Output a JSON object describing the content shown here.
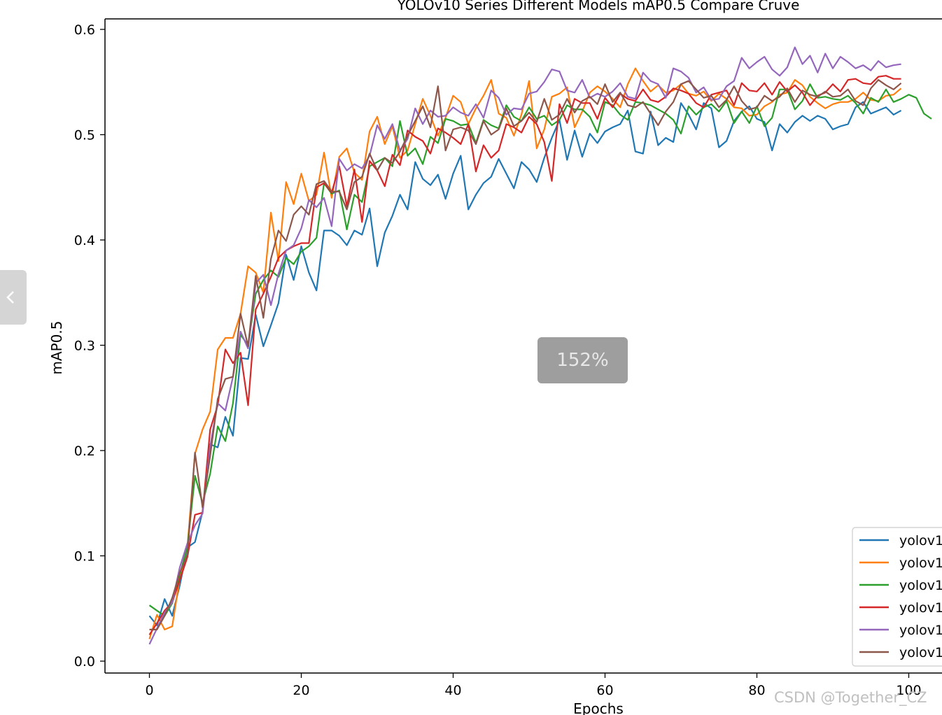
{
  "viewer": {
    "zoom_label": "152%",
    "watermark": "CSDN @Together_CZ",
    "prev_icon": "chevron-left-icon"
  },
  "chart_data": {
    "type": "line",
    "title": "YOLOv10 Series Different Models mAP0.5 Compare Cruve",
    "xlabel": "Epochs",
    "ylabel": "mAP0.5",
    "xlim": [
      -6,
      104
    ],
    "ylim": [
      -0.012,
      0.61
    ],
    "xticks": [
      0,
      20,
      40,
      60,
      80,
      100
    ],
    "yticks": [
      0.0,
      0.1,
      0.2,
      0.3,
      0.4,
      0.5,
      0.6
    ],
    "xtick_labels": [
      "0",
      "20",
      "40",
      "60",
      "80",
      "100"
    ],
    "ytick_labels": [
      "0.0",
      "0.1",
      "0.2",
      "0.3",
      "0.4",
      "0.5",
      "0.6"
    ],
    "grid": false,
    "legend_position": "bottom-right",
    "series": [
      {
        "name": "yolov1",
        "color": "#1f77b4",
        "values": [
          0.043,
          0.034,
          0.059,
          0.043,
          0.072,
          0.108,
          0.113,
          0.142,
          0.206,
          0.203,
          0.232,
          0.214,
          0.288,
          0.287,
          0.329,
          0.299,
          0.319,
          0.34,
          0.386,
          0.362,
          0.394,
          0.369,
          0.352,
          0.409,
          0.409,
          0.404,
          0.395,
          0.409,
          0.405,
          0.43,
          0.375,
          0.407,
          0.423,
          0.443,
          0.429,
          0.474,
          0.458,
          0.452,
          0.462,
          0.439,
          0.463,
          0.48,
          0.429,
          0.443,
          0.454,
          0.46,
          0.477,
          0.463,
          0.449,
          0.474,
          0.467,
          0.455,
          0.478,
          0.497,
          0.514,
          0.476,
          0.504,
          0.479,
          0.501,
          0.492,
          0.503,
          0.507,
          0.51,
          0.523,
          0.484,
          0.482,
          0.522,
          0.49,
          0.497,
          0.493,
          0.53,
          0.519,
          0.505,
          0.53,
          0.525,
          0.488,
          0.494,
          0.513,
          0.522,
          0.527,
          0.515,
          0.512,
          0.485,
          0.51,
          0.502,
          0.512,
          0.518,
          0.513,
          0.518,
          0.515,
          0.505,
          0.508,
          0.51,
          0.526,
          0.531,
          0.52,
          0.523,
          0.526,
          0.519,
          0.523
        ]
      },
      {
        "name": "yolov1",
        "color": "#ff7f0e",
        "values": [
          0.021,
          0.044,
          0.03,
          0.033,
          0.079,
          0.109,
          0.197,
          0.22,
          0.237,
          0.296,
          0.307,
          0.307,
          0.33,
          0.375,
          0.369,
          0.35,
          0.426,
          0.38,
          0.455,
          0.434,
          0.463,
          0.437,
          0.443,
          0.483,
          0.44,
          0.479,
          0.487,
          0.464,
          0.457,
          0.503,
          0.517,
          0.491,
          0.508,
          0.478,
          0.485,
          0.51,
          0.534,
          0.518,
          0.499,
          0.516,
          0.537,
          0.531,
          0.51,
          0.525,
          0.537,
          0.552,
          0.52,
          0.516,
          0.499,
          0.519,
          0.551,
          0.487,
          0.505,
          0.536,
          0.539,
          0.545,
          0.507,
          0.522,
          0.54,
          0.546,
          0.541,
          0.534,
          0.526,
          0.548,
          0.563,
          0.551,
          0.541,
          0.547,
          0.54,
          0.542,
          0.548,
          0.539,
          0.537,
          0.541,
          0.532,
          0.539,
          0.534,
          0.526,
          0.525,
          0.518,
          0.519,
          0.527,
          0.531,
          0.538,
          0.54,
          0.552,
          0.547,
          0.536,
          0.53,
          0.525,
          0.529,
          0.531,
          0.531,
          0.534,
          0.54,
          0.533,
          0.532,
          0.537,
          0.538,
          0.544
        ]
      },
      {
        "name": "yolov1",
        "color": "#2ca02c",
        "values": [
          0.053,
          0.048,
          0.043,
          0.055,
          0.082,
          0.109,
          0.176,
          0.15,
          0.178,
          0.223,
          0.209,
          0.245,
          0.31,
          0.3,
          0.349,
          0.362,
          0.371,
          0.365,
          0.383,
          0.377,
          0.389,
          0.394,
          0.402,
          0.454,
          0.444,
          0.447,
          0.41,
          0.443,
          0.436,
          0.47,
          0.474,
          0.478,
          0.47,
          0.513,
          0.48,
          0.487,
          0.472,
          0.498,
          0.492,
          0.515,
          0.513,
          0.509,
          0.51,
          0.492,
          0.514,
          0.509,
          0.506,
          0.528,
          0.517,
          0.513,
          0.526,
          0.515,
          0.518,
          0.509,
          0.514,
          0.528,
          0.524,
          0.524,
          0.517,
          0.502,
          0.531,
          0.528,
          0.519,
          0.514,
          0.531,
          0.53,
          0.528,
          0.524,
          0.52,
          0.514,
          0.501,
          0.527,
          0.519,
          0.526,
          0.529,
          0.522,
          0.532,
          0.511,
          0.522,
          0.511,
          0.527,
          0.508,
          0.516,
          0.543,
          0.543,
          0.524,
          0.532,
          0.548,
          0.535,
          0.536,
          0.534,
          0.533,
          0.537,
          0.53,
          0.52,
          0.535,
          0.531,
          0.543,
          0.531,
          0.534,
          0.538,
          0.535,
          0.52,
          0.515
        ]
      },
      {
        "name": "yolov1",
        "color": "#d62728",
        "values": [
          0.025,
          0.036,
          0.048,
          0.056,
          0.077,
          0.099,
          0.139,
          0.141,
          0.22,
          0.243,
          0.296,
          0.283,
          0.293,
          0.243,
          0.334,
          0.349,
          0.365,
          0.383,
          0.39,
          0.394,
          0.397,
          0.397,
          0.45,
          0.454,
          0.445,
          0.47,
          0.432,
          0.467,
          0.417,
          0.475,
          0.466,
          0.451,
          0.481,
          0.471,
          0.504,
          0.498,
          0.494,
          0.482,
          0.506,
          0.502,
          0.497,
          0.491,
          0.51,
          0.465,
          0.49,
          0.478,
          0.485,
          0.51,
          0.507,
          0.502,
          0.517,
          0.51,
          0.493,
          0.456,
          0.529,
          0.511,
          0.534,
          0.53,
          0.53,
          0.515,
          0.535,
          0.526,
          0.539,
          0.534,
          0.532,
          0.543,
          0.533,
          0.531,
          0.536,
          0.544,
          0.542,
          0.539,
          0.53,
          0.526,
          0.538,
          0.54,
          0.542,
          0.528,
          0.549,
          0.542,
          0.541,
          0.549,
          0.538,
          0.55,
          0.541,
          0.547,
          0.54,
          0.528,
          0.537,
          0.54,
          0.548,
          0.541,
          0.552,
          0.553,
          0.549,
          0.548,
          0.555,
          0.556,
          0.553,
          0.553
        ]
      },
      {
        "name": "yolov1",
        "color": "#9467bd",
        "values": [
          0.016,
          0.031,
          0.046,
          0.056,
          0.089,
          0.112,
          0.129,
          0.14,
          0.204,
          0.245,
          0.238,
          0.27,
          0.313,
          0.297,
          0.359,
          0.367,
          0.338,
          0.368,
          0.39,
          0.395,
          0.411,
          0.438,
          0.431,
          0.44,
          0.413,
          0.477,
          0.466,
          0.472,
          0.468,
          0.48,
          0.509,
          0.496,
          0.51,
          0.485,
          0.496,
          0.525,
          0.51,
          0.523,
          0.517,
          0.518,
          0.526,
          0.521,
          0.518,
          0.529,
          0.516,
          0.542,
          0.535,
          0.519,
          0.525,
          0.524,
          0.539,
          0.541,
          0.55,
          0.562,
          0.56,
          0.542,
          0.54,
          0.552,
          0.535,
          0.539,
          0.536,
          0.541,
          0.549,
          0.536,
          0.534,
          0.559,
          0.551,
          0.548,
          0.535,
          0.563,
          0.56,
          0.554,
          0.54,
          0.545,
          0.533,
          0.534,
          0.546,
          0.551,
          0.573,
          0.563,
          0.569,
          0.574,
          0.562,
          0.556,
          0.564,
          0.583,
          0.567,
          0.575,
          0.559,
          0.577,
          0.563,
          0.574,
          0.569,
          0.563,
          0.566,
          0.561,
          0.57,
          0.564,
          0.566,
          0.567
        ]
      },
      {
        "name": "yolov1",
        "color": "#8c564b",
        "values": [
          0.03,
          0.03,
          0.043,
          0.06,
          0.084,
          0.101,
          0.198,
          0.146,
          0.195,
          0.249,
          0.268,
          0.27,
          0.33,
          0.299,
          0.366,
          0.326,
          0.382,
          0.409,
          0.399,
          0.424,
          0.432,
          0.424,
          0.453,
          0.456,
          0.446,
          0.446,
          0.429,
          0.455,
          0.46,
          0.482,
          0.466,
          0.478,
          0.473,
          0.484,
          0.499,
          0.513,
          0.527,
          0.507,
          0.546,
          0.485,
          0.505,
          0.507,
          0.504,
          0.491,
          0.513,
          0.5,
          0.505,
          0.525,
          0.508,
          0.513,
          0.521,
          0.512,
          0.534,
          0.514,
          0.519,
          0.534,
          0.521,
          0.532,
          0.536,
          0.529,
          0.548,
          0.531,
          0.54,
          0.528,
          0.526,
          0.531,
          0.52,
          0.509,
          0.522,
          0.531,
          0.548,
          0.551,
          0.543,
          0.535,
          0.537,
          0.526,
          0.533,
          0.546,
          0.532,
          0.524,
          0.526,
          0.537,
          0.532,
          0.536,
          0.544,
          0.531,
          0.542,
          0.538,
          0.536,
          0.541,
          0.536,
          0.537,
          0.543,
          0.532,
          0.528,
          0.544,
          0.552,
          0.547,
          0.543,
          0.549
        ]
      }
    ]
  }
}
